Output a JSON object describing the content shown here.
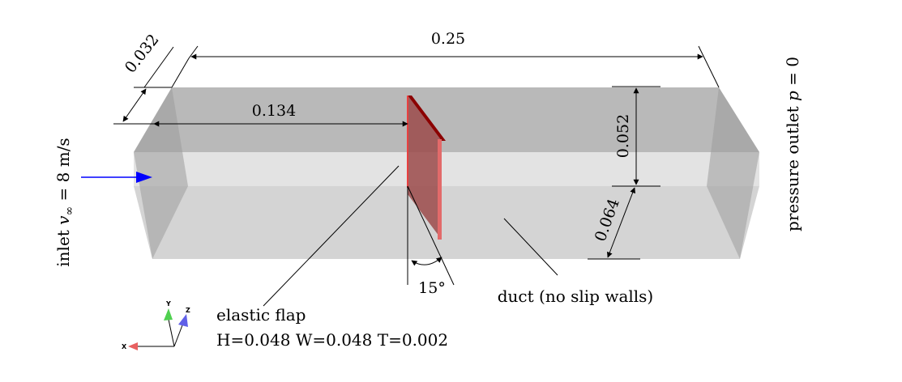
{
  "dimensions": {
    "length": "0.25",
    "inlet_depth": "0.032",
    "flap_position": "0.134",
    "upper_height": "0.052",
    "lower_height": "0.064",
    "flap_angle": "15°"
  },
  "labels": {
    "inlet_prefix": "inlet ",
    "inlet_var": "v",
    "inlet_sub": "∞",
    "inlet_value": " = 8 m/s",
    "outlet_prefix": "pressure outlet ",
    "outlet_var": "p",
    "outlet_value": " = 0",
    "duct": "duct (no slip walls)",
    "flap_title": "elastic flap",
    "flap_dims": "H=0.048 W=0.048 T=0.002"
  },
  "axes": {
    "x": "X",
    "y": "Y",
    "z": "Z"
  },
  "colors": {
    "duct_top": "#b9b9b9",
    "duct_band": "#e3e3e3",
    "duct_bottom": "#d4d4d4",
    "duct_end_face": "#9c9c9c",
    "flap": "#9b4a4a",
    "flap_edge": "#e26a6a",
    "inlet_arrow": "#0000ff",
    "axis_x": "#e86060",
    "axis_y": "#50d050",
    "axis_z": "#6060e8"
  }
}
